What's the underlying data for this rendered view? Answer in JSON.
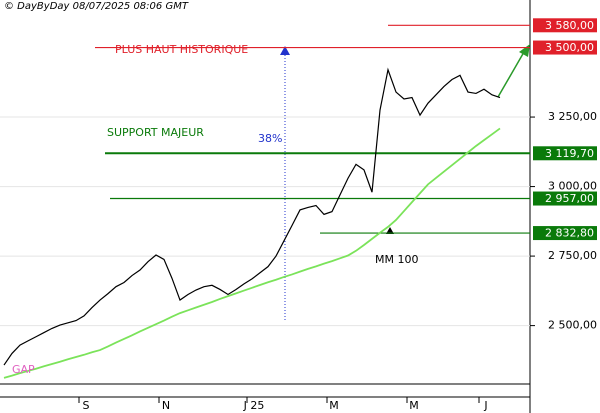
{
  "chart_data": {
    "type": "line",
    "subtitle": "© DayByDay 08/07/2025 08:06 GMT",
    "categories": [
      null,
      null,
      null,
      null,
      null,
      null,
      null,
      null,
      null,
      null,
      "S",
      null,
      null,
      null,
      null,
      null,
      null,
      null,
      null,
      null,
      "N",
      null,
      null,
      null,
      null,
      null,
      null,
      null,
      null,
      null,
      null,
      "J 25",
      null,
      null,
      null,
      null,
      null,
      null,
      null,
      null,
      null,
      "M",
      null,
      null,
      null,
      null,
      null,
      null,
      null,
      null,
      null,
      "M",
      null,
      null,
      null,
      null,
      null,
      null,
      null,
      null,
      "J",
      null,
      null
    ],
    "series": [
      {
        "color": "#000000",
        "values": [
          2358,
          2400,
          2430,
          2445,
          2460,
          2475,
          2490,
          2502,
          2510,
          2518,
          2535,
          2565,
          2592,
          2615,
          2640,
          2655,
          2680,
          2700,
          2730,
          2754,
          2738,
          2670,
          2592,
          2612,
          2628,
          2640,
          2645,
          2630,
          2612,
          2630,
          2650,
          2668,
          2690,
          2712,
          2750,
          2805,
          2860,
          2916,
          2925,
          2932,
          2900,
          2910,
          2970,
          3030,
          3080,
          3060,
          2980,
          3275,
          3420,
          3340,
          3315,
          3320,
          3257,
          3300,
          3330,
          3360,
          3385,
          3400,
          3340,
          3335,
          3350,
          3330,
          3320
        ]
      },
      {
        "color": "#7be35a",
        "values": [
          2312,
          2320,
          2329,
          2337,
          2345,
          2354,
          2362,
          2370,
          2379,
          2387,
          2395,
          2404,
          2412,
          2425,
          2439,
          2452,
          2465,
          2479,
          2492,
          2505,
          2518,
          2532,
          2545,
          2555,
          2565,
          2575,
          2585,
          2596,
          2606,
          2616,
          2626,
          2636,
          2646,
          2656,
          2665,
          2675,
          2684,
          2694,
          2704,
          2713,
          2723,
          2732,
          2742,
          2752,
          2769,
          2790,
          2812,
          2834,
          2855,
          2880,
          2912,
          2944,
          2976,
          3008,
          3031,
          3054,
          3077,
          3100,
          3123,
          3146,
          3167,
          3188,
          3209
        ]
      }
    ],
    "ylim": [
      2290,
      3635
    ],
    "yticks": [
      {
        "value": 2500,
        "label": "2 500,00"
      },
      {
        "value": 2750,
        "label": "2 750,00"
      },
      {
        "value": 3000,
        "label": "3 000,00"
      },
      {
        "value": 3250,
        "label": "3 250,00"
      }
    ],
    "grid": true,
    "levels": [
      {
        "value": 3580,
        "label": "3 580,00",
        "color": "#e0202a"
      },
      {
        "value": 3500,
        "label": "3 500,00",
        "color": "#e0202a"
      },
      {
        "value": 3119.7,
        "label": "3 119,70",
        "color": "#0a7a0a"
      },
      {
        "value": 2957,
        "label": "2 957,00",
        "color": "#0a7a0a"
      },
      {
        "value": 2832.8,
        "label": "2 832,80",
        "color": "#0a7a0a"
      }
    ],
    "annotations": {
      "all_time_high": "PLUS HAUT HISTORIQUE",
      "support": "SUPPORT MAJEUR",
      "retracement": "38%",
      "ma_label": "MM 100",
      "gap": "GAP"
    }
  }
}
